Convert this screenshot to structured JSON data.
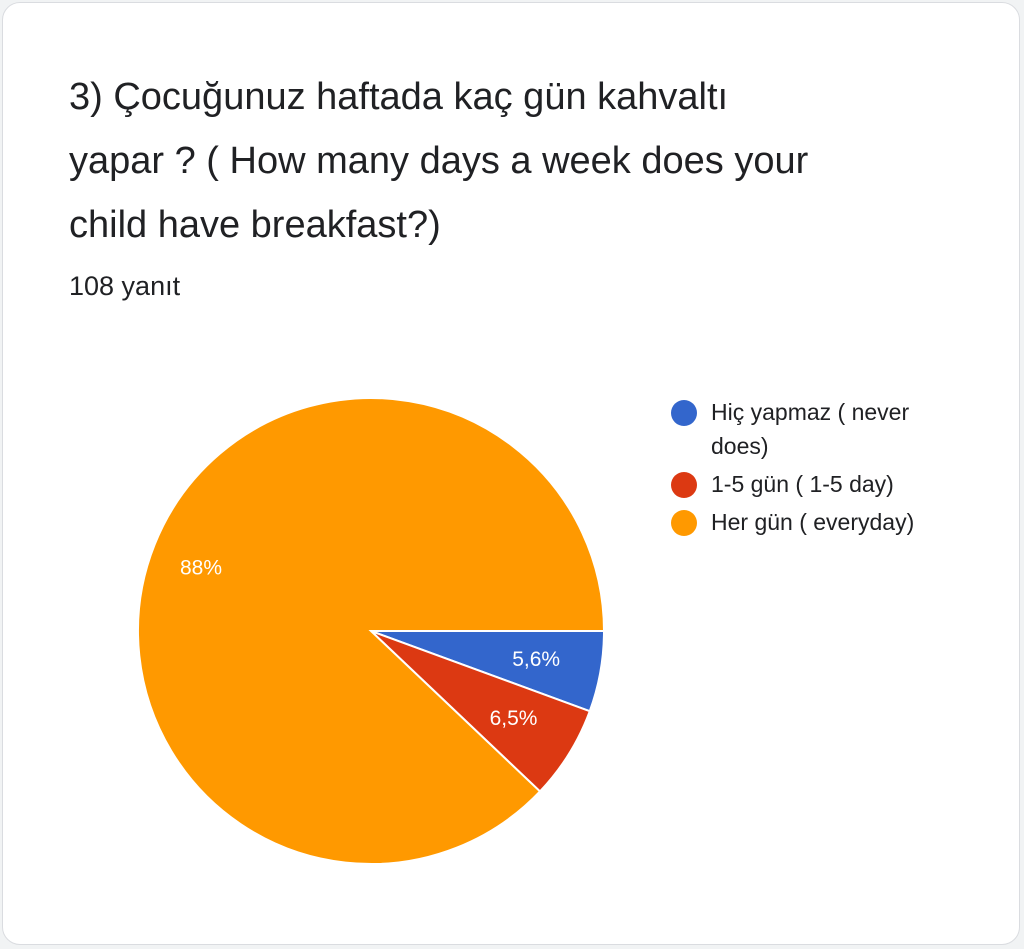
{
  "question": "3) Çocuğunuz haftada kaç gün kahvaltı yapar ? ( How many days a week does your child have breakfast?)",
  "response_count": "108 yanıt",
  "chart_data": {
    "type": "pie",
    "title": "3) Çocuğunuz haftada kaç gün kahvaltı yapar ? ( How many days a week does your child have breakfast?)",
    "categories": [
      "Hiç yapmaz ( never does)",
      "1-5 gün ( 1-5 day)",
      "Her gün ( everyday)"
    ],
    "values": [
      5.6,
      6.5,
      88
    ],
    "labels": [
      "5,6%",
      "6,5%",
      "88%"
    ],
    "colors": [
      "#3366cc",
      "#dc3912",
      "#ff9900"
    ],
    "legend": "right"
  }
}
